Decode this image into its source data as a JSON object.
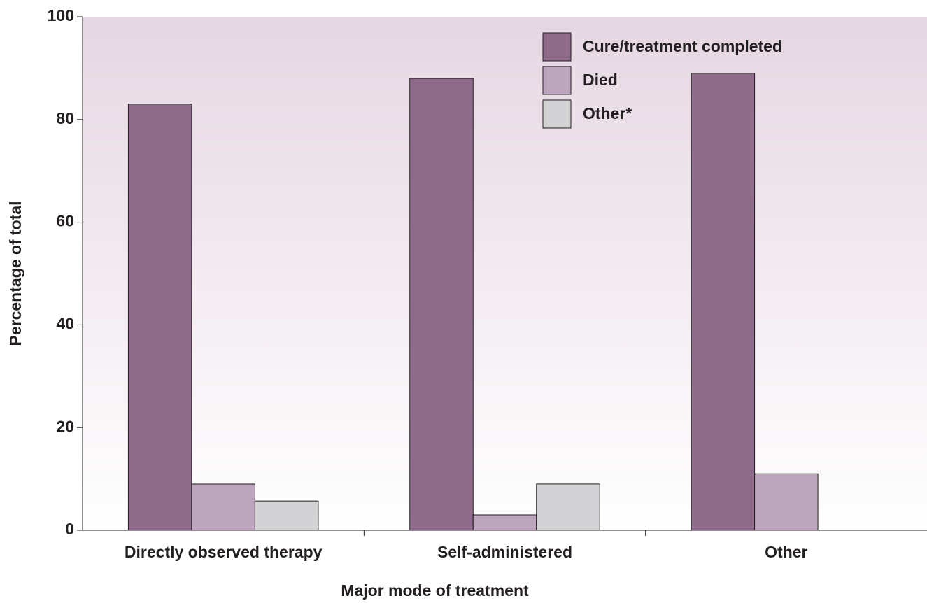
{
  "chart_data": {
    "type": "bar",
    "x_label": "Major mode of treatment",
    "y_label": "Percentage of total",
    "categories": [
      "Directly observed therapy",
      "Self-administered",
      "Other"
    ],
    "series": [
      {
        "name": "Cure/treatment completed",
        "color": "#8e6b8a",
        "values": [
          83,
          88,
          89
        ]
      },
      {
        "name": "Died",
        "color": "#bda5bd",
        "values": [
          9,
          3,
          11
        ]
      },
      {
        "name": "Other*",
        "color": "#d3d3d5",
        "values": [
          5.7,
          9,
          null
        ]
      }
    ],
    "ylim": [
      0,
      100
    ],
    "yticks": [
      0,
      20,
      40,
      60,
      80,
      100
    ]
  }
}
